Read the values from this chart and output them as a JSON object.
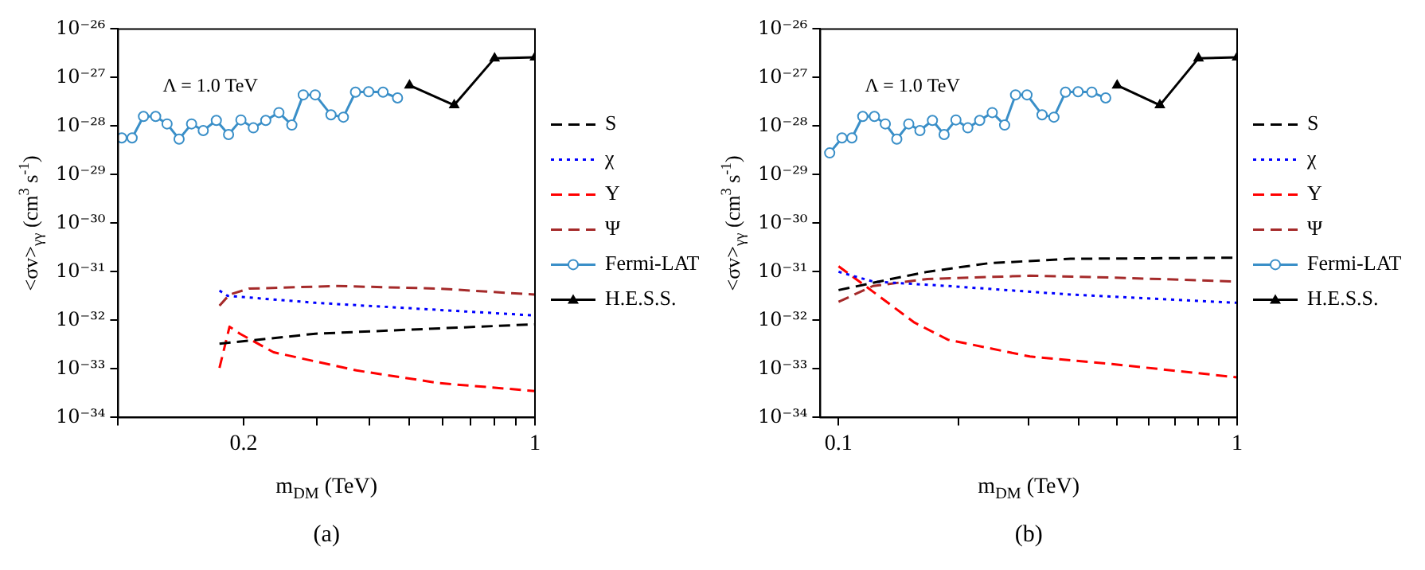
{
  "chart_data": [
    {
      "type": "line",
      "title": "(a)",
      "xlabel": "m$_{DM}$ (TeV)",
      "ylabel": "<σv>$_{γγ}$ (cm$^{3}$ s$^{-1}$)",
      "annotations": [
        "Λ = 1.0 TeV"
      ],
      "log": "xy",
      "grid": false,
      "legend": "right",
      "xlim": [
        0.1,
        1
      ],
      "ylim": [
        1e-34,
        1e-26
      ],
      "xticks": [
        {
          "value": 0.1,
          "label": null
        },
        0.2,
        {
          "value": 0.3,
          "label": null
        },
        {
          "value": 0.4,
          "label": null
        },
        {
          "value": 0.5,
          "label": null
        },
        {
          "value": 0.6,
          "label": null
        },
        {
          "value": 0.7,
          "label": null
        },
        {
          "value": 0.8,
          "label": null
        },
        {
          "value": 0.9,
          "label": null
        },
        1
      ],
      "yticks": [
        {
          "value": 1e-34,
          "label": "10⁻³⁴"
        },
        {
          "value": 1e-33,
          "label": "10⁻³³"
        },
        {
          "value": 1e-32,
          "label": "10⁻³²"
        },
        {
          "value": 1e-31,
          "label": "10⁻³¹"
        },
        {
          "value": 1e-30,
          "label": "10⁻³⁰"
        },
        {
          "value": 1e-29,
          "label": "10⁻²⁹"
        },
        {
          "value": 1e-28,
          "label": "10⁻²⁸"
        },
        {
          "value": 1e-27,
          "label": "10⁻²⁷"
        },
        {
          "value": 1e-26,
          "label": "10⁻²⁶"
        }
      ],
      "series": [
        {
          "name": "S",
          "color": "#000000",
          "line_style": "dashed",
          "marker": "none",
          "x": [
            0.175,
            0.297,
            1.0
          ],
          "values": [
            3.3e-33,
            5.3e-33,
            8.3e-33
          ]
        },
        {
          "name": "χ",
          "color": "#0000ff",
          "line_style": "dotted",
          "marker": "none",
          "x": [
            0.175,
            0.183,
            0.297,
            1.0
          ],
          "values": [
            4.1e-32,
            3.2e-32,
            2.3e-32,
            1.26e-32
          ]
        },
        {
          "name": "Υ",
          "color": "#ff0000",
          "line_style": "dashed",
          "marker": "none",
          "x": [
            0.175,
            0.185,
            0.196,
            0.236,
            0.373,
            0.589,
            1.0
          ],
          "values": [
            1.05e-33,
            7.4e-33,
            5.3e-33,
            2.2e-33,
            9.3e-34,
            5.1e-34,
            3.5e-34
          ]
        },
        {
          "name": "Ψ",
          "color": "#a52a2a",
          "line_style": "dashed",
          "marker": "none",
          "x": [
            0.175,
            0.185,
            0.206,
            0.333,
            0.589,
            1.0
          ],
          "values": [
            2e-32,
            3.4e-32,
            4.5e-32,
            5.1e-32,
            4.5e-32,
            3.4e-32
          ]
        },
        {
          "name": "Fermi-LAT",
          "color": "#3a8fc8",
          "line_style": "solid",
          "marker": "circle",
          "x": [
            0.102,
            0.108,
            0.115,
            0.123,
            0.131,
            0.14,
            0.15,
            0.16,
            0.172,
            0.184,
            0.197,
            0.211,
            0.226,
            0.243,
            0.261,
            0.278,
            0.297,
            0.324,
            0.347,
            0.371,
            0.399,
            0.432,
            0.468
          ],
          "values": [
            5.7e-29,
            5.7e-29,
            1.58e-28,
            1.58e-28,
            1.11e-28,
            5.4e-29,
            1.11e-28,
            8.1e-29,
            1.31e-28,
            6.7e-29,
            1.34e-28,
            9.2e-29,
            1.31e-28,
            1.9e-28,
            1.05e-28,
            4.4e-28,
            4.4e-28,
            1.71e-28,
            1.53e-28,
            5e-28,
            5.1e-28,
            5e-28,
            3.8e-28
          ]
        },
        {
          "name": "H.E.S.S.",
          "color": "#000000",
          "line_style": "solid",
          "marker": "triangle",
          "x": [
            0.5,
            0.64,
            0.8,
            1.0
          ],
          "values": [
            6.9e-28,
            2.7e-28,
            2.5e-27,
            2.6e-27
          ]
        }
      ]
    },
    {
      "type": "line",
      "title": "(b)",
      "xlabel": "m$_{DM}$ (TeV)",
      "ylabel": "<σv>$_{γγ}$ (cm$^{3}$ s$^{-1}$)",
      "annotations": [
        "Λ = 1.0 TeV"
      ],
      "log": "xy",
      "grid": false,
      "legend": "right",
      "xlim": [
        0.09,
        1
      ],
      "ylim": [
        1e-34,
        1e-26
      ],
      "xticks": [
        0.1,
        {
          "value": 0.2,
          "label": null
        },
        {
          "value": 0.3,
          "label": null
        },
        {
          "value": 0.4,
          "label": null
        },
        {
          "value": 0.5,
          "label": null
        },
        {
          "value": 0.6,
          "label": null
        },
        {
          "value": 0.7,
          "label": null
        },
        {
          "value": 0.8,
          "label": null
        },
        {
          "value": 0.9,
          "label": null
        },
        1
      ],
      "yticks": [
        {
          "value": 1e-34,
          "label": "10⁻³⁴"
        },
        {
          "value": 1e-33,
          "label": "10⁻³³"
        },
        {
          "value": 1e-32,
          "label": "10⁻³²"
        },
        {
          "value": 1e-31,
          "label": "10⁻³¹"
        },
        {
          "value": 1e-30,
          "label": "10⁻³⁰"
        },
        {
          "value": 1e-29,
          "label": "10⁻²⁹"
        },
        {
          "value": 1e-28,
          "label": "10⁻²⁸"
        },
        {
          "value": 1e-27,
          "label": "10⁻²⁷"
        },
        {
          "value": 1e-26,
          "label": "10⁻²⁶"
        }
      ],
      "series": [
        {
          "name": "S",
          "color": "#000000",
          "line_style": "dashed",
          "marker": "none",
          "x": [
            0.1,
            0.131,
            0.167,
            0.238,
            0.382,
            1.0
          ],
          "values": [
            4.2e-32,
            6.7e-32,
            1e-31,
            1.5e-31,
            1.85e-31,
            1.95e-31
          ]
        },
        {
          "name": "χ",
          "color": "#0000ff",
          "line_style": "dotted",
          "marker": "none",
          "x": [
            0.1,
            0.122,
            0.188,
            0.382,
            1.0
          ],
          "values": [
            1e-31,
            6.3e-32,
            5.1e-32,
            3.4e-32,
            2.3e-32
          ]
        },
        {
          "name": "Υ",
          "color": "#ff0000",
          "line_style": "dashed",
          "marker": "none",
          "x": [
            0.1,
            0.122,
            0.155,
            0.188,
            0.302,
            0.485,
            1.0
          ],
          "values": [
            1.3e-31,
            3.9e-32,
            9e-33,
            4e-33,
            1.8e-33,
            1.26e-33,
            6.7e-34
          ]
        },
        {
          "name": "Ψ",
          "color": "#a52a2a",
          "line_style": "dashed",
          "marker": "none",
          "x": [
            0.1,
            0.122,
            0.167,
            0.302,
            0.485,
            1.0
          ],
          "values": [
            2.4e-32,
            5.1e-32,
            7.1e-32,
            8.3e-32,
            7.6e-32,
            6.3e-32
          ]
        },
        {
          "name": "Fermi-LAT",
          "color": "#3a8fc8",
          "line_style": "solid",
          "marker": "circle",
          "x": [
            0.095,
            0.102,
            0.108,
            0.115,
            0.123,
            0.131,
            0.14,
            0.15,
            0.16,
            0.172,
            0.184,
            0.197,
            0.211,
            0.226,
            0.243,
            0.261,
            0.278,
            0.297,
            0.324,
            0.347,
            0.371,
            0.399,
            0.432,
            0.468
          ],
          "values": [
            2.8e-29,
            5.7e-29,
            5.7e-29,
            1.58e-28,
            1.58e-28,
            1.11e-28,
            5.4e-29,
            1.11e-28,
            8.1e-29,
            1.31e-28,
            6.7e-29,
            1.34e-28,
            9.2e-29,
            1.31e-28,
            1.9e-28,
            1.05e-28,
            4.4e-28,
            4.4e-28,
            1.71e-28,
            1.53e-28,
            5e-28,
            5.1e-28,
            5e-28,
            3.8e-28
          ]
        },
        {
          "name": "H.E.S.S.",
          "color": "#000000",
          "line_style": "solid",
          "marker": "triangle",
          "x": [
            0.5,
            0.64,
            0.8,
            1.0
          ],
          "values": [
            6.9e-28,
            2.7e-28,
            2.5e-27,
            2.6e-27
          ]
        }
      ]
    }
  ]
}
